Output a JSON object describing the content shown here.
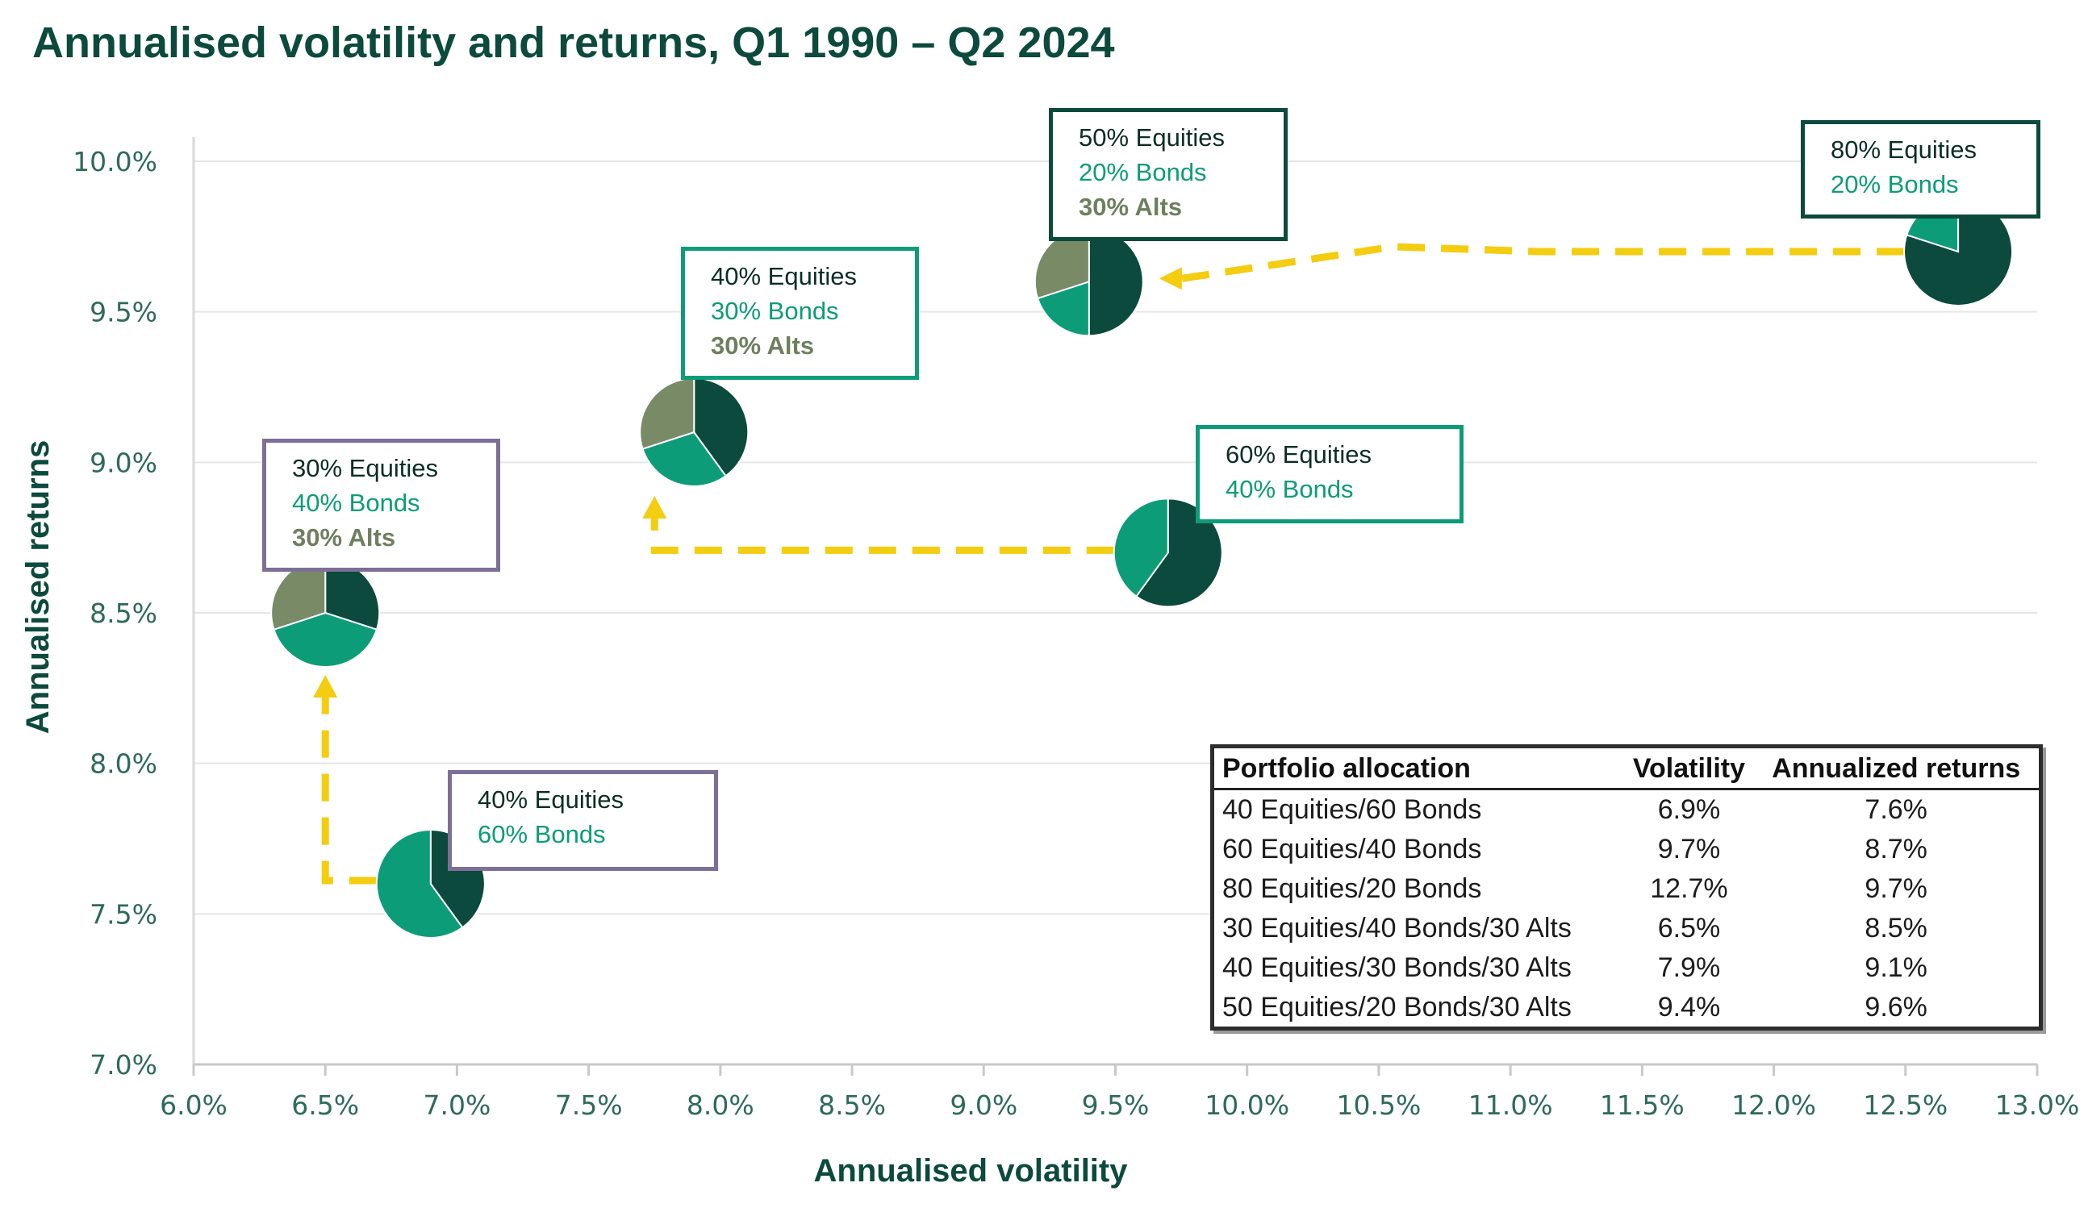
{
  "title": "Annualised volatility and returns, Q1 1990 – Q2 2024",
  "colors": {
    "equities": "#0b4a3c",
    "bonds": "#0c9c78",
    "alts": "#788a66",
    "arrow": "#f4cc10",
    "title": "#0b4a3c"
  },
  "chart_data": {
    "type": "scatter",
    "title": "Annualised volatility and returns, Q1 1990 – Q2 2024",
    "xlabel": "Annualised volatility",
    "ylabel": "Annualised returns",
    "xlim": [
      6.0,
      13.0
    ],
    "ylim": [
      7.0,
      10.0
    ],
    "x_ticks": [
      "6.0%",
      "6.5%",
      "7.0%",
      "7.5%",
      "8.0%",
      "8.5%",
      "9.0%",
      "9.5%",
      "10.0%",
      "10.5%",
      "11.0%",
      "11.5%",
      "12.0%",
      "12.5%",
      "13.0%"
    ],
    "y_ticks": [
      "7.0%",
      "7.5%",
      "8.0%",
      "8.5%",
      "9.0%",
      "9.5%",
      "10.0%"
    ],
    "grid": "horizontal",
    "points": [
      {
        "id": "p40",
        "x": 6.9,
        "y": 7.6,
        "equities": 40,
        "bonds": 60,
        "alts": 0,
        "labels": [
          "40% Equities",
          "60% Bonds"
        ]
      },
      {
        "id": "p60",
        "x": 9.7,
        "y": 8.7,
        "equities": 60,
        "bonds": 40,
        "alts": 0,
        "labels": [
          "60% Equities",
          "40% Bonds"
        ]
      },
      {
        "id": "p80",
        "x": 12.7,
        "y": 9.7,
        "equities": 80,
        "bonds": 20,
        "alts": 0,
        "labels": [
          "80% Equities",
          "20% Bonds"
        ]
      },
      {
        "id": "a30",
        "x": 6.5,
        "y": 8.5,
        "equities": 30,
        "bonds": 40,
        "alts": 30,
        "labels": [
          "30% Equities",
          "40% Bonds",
          "30% Alts"
        ]
      },
      {
        "id": "a40",
        "x": 7.9,
        "y": 9.1,
        "equities": 40,
        "bonds": 30,
        "alts": 30,
        "labels": [
          "40% Equities",
          "30% Bonds",
          "30% Alts"
        ]
      },
      {
        "id": "a50",
        "x": 9.4,
        "y": 9.6,
        "equities": 50,
        "bonds": 20,
        "alts": 30,
        "labels": [
          "50% Equities",
          "20% Bonds",
          "30% Alts"
        ]
      }
    ],
    "arrows": [
      {
        "from": [
          6.9,
          7.6
        ],
        "via": [
          6.5,
          7.6
        ],
        "to": [
          6.5,
          8.5
        ]
      },
      {
        "from": [
          9.7,
          8.7
        ],
        "via": [
          7.75,
          8.7
        ],
        "to": [
          7.75,
          9.1
        ]
      },
      {
        "from": [
          12.7,
          9.7
        ],
        "to": [
          9.4,
          9.6
        ]
      }
    ],
    "table": {
      "headers": [
        "Portfolio allocation",
        "Volatility",
        "Annualized returns"
      ],
      "rows": [
        [
          "40 Equities/60 Bonds",
          "6.9%",
          "7.6%"
        ],
        [
          "60 Equities/40 Bonds",
          "9.7%",
          "8.7%"
        ],
        [
          "80 Equities/20 Bonds",
          "12.7%",
          "9.7%"
        ],
        [
          "30 Equities/40 Bonds/30 Alts",
          "6.5%",
          "8.5%"
        ],
        [
          "40 Equities/30 Bonds/30 Alts",
          "7.9%",
          "9.1%"
        ],
        [
          "50 Equities/20 Bonds/30 Alts",
          "9.4%",
          "9.6%"
        ]
      ]
    }
  }
}
